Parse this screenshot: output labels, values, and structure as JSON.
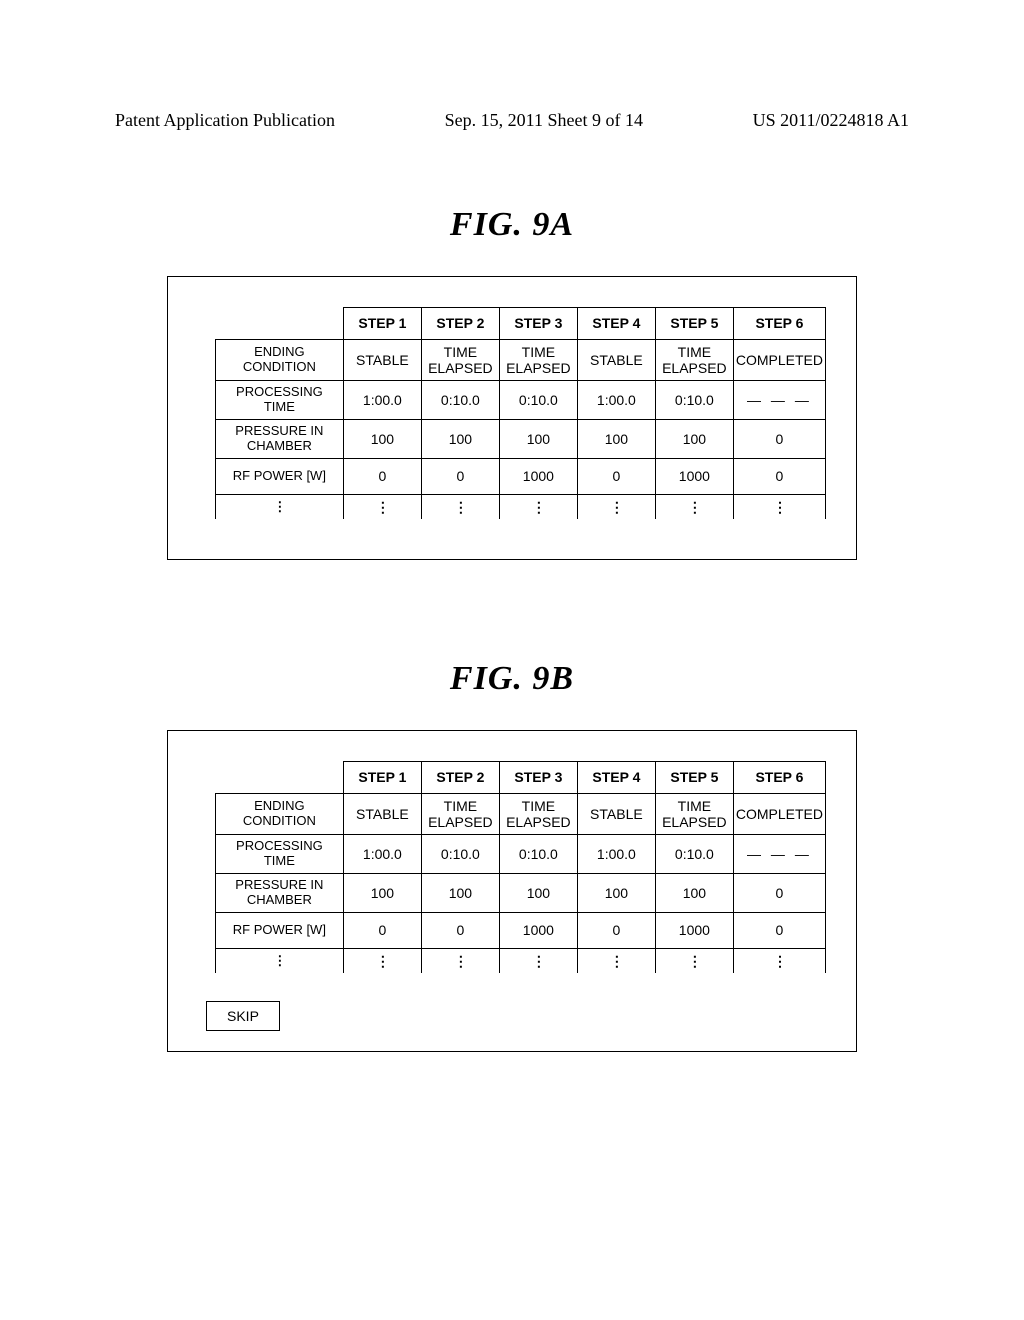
{
  "header": {
    "left": "Patent Application Publication",
    "center": "Sep. 15, 2011  Sheet 9 of 14",
    "right": "US 2011/0224818 A1"
  },
  "figure_a": {
    "label": "FIG. 9A",
    "columns": [
      "STEP 1",
      "STEP 2",
      "STEP 3",
      "STEP 4",
      "STEP 5",
      "STEP 6"
    ],
    "rows": [
      {
        "head": "ENDING\nCONDITION",
        "cells": [
          "STABLE",
          "TIME\nELAPSED",
          "TIME\nELAPSED",
          "STABLE",
          "TIME\nELAPSED",
          "COMPLETED"
        ]
      },
      {
        "head": "PROCESSING\nTIME",
        "cells": [
          "1:00.0",
          "0:10.0",
          "0:10.0",
          "1:00.0",
          "0:10.0",
          "— — —"
        ]
      },
      {
        "head": "PRESSURE IN\nCHAMBER",
        "cells": [
          "100",
          "100",
          "100",
          "100",
          "100",
          "0"
        ]
      },
      {
        "head": "RF POWER [W]",
        "cells": [
          "0",
          "0",
          "1000",
          "0",
          "1000",
          "0"
        ]
      }
    ],
    "dots_row": {
      "head": "⋮",
      "cells": [
        "⋮",
        "⋮",
        "⋮",
        "⋮",
        "⋮",
        "⋮"
      ]
    }
  },
  "figure_b": {
    "label": "FIG. 9B",
    "columns": [
      "STEP 1",
      "STEP 2",
      "STEP 3",
      "STEP 4",
      "STEP 5",
      "STEP 6"
    ],
    "rows": [
      {
        "head": "ENDING\nCONDITION",
        "cells": [
          "STABLE",
          "TIME\nELAPSED",
          "TIME\nELAPSED",
          "STABLE",
          "TIME\nELAPSED",
          "COMPLETED"
        ]
      },
      {
        "head": "PROCESSING\nTIME",
        "cells": [
          "1:00.0",
          "0:10.0",
          "0:10.0",
          "1:00.0",
          "0:10.0",
          "— — —"
        ]
      },
      {
        "head": "PRESSURE IN\nCHAMBER",
        "cells": [
          "100",
          "100",
          "100",
          "100",
          "100",
          "0"
        ]
      },
      {
        "head": "RF POWER [W]",
        "cells": [
          "0",
          "0",
          "1000",
          "0",
          "1000",
          "0"
        ]
      }
    ],
    "dots_row": {
      "head": "⋮",
      "cells": [
        "⋮",
        "⋮",
        "⋮",
        "⋮",
        "⋮",
        "⋮"
      ]
    },
    "skip_label": "SKIP"
  }
}
